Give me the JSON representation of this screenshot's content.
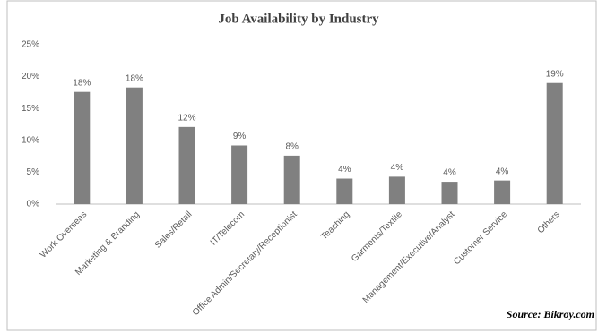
{
  "chart_data": {
    "type": "bar",
    "title": "Job Availability by Industry",
    "categories": [
      "Work Overseas",
      "Marketing & Branding",
      "Sales/Retail",
      "IT/Telecom",
      "Office Admin/Secretary/Receptionist",
      "Teaching",
      "Garments/Textile",
      "Management/Executive/Analyst",
      "Customer Service",
      "Others"
    ],
    "values": [
      17.6,
      18.3,
      12.1,
      9.2,
      7.6,
      4.0,
      4.3,
      3.5,
      3.7,
      19.0
    ],
    "value_labels": [
      "18%",
      "18%",
      "12%",
      "9%",
      "8%",
      "4%",
      "4%",
      "4%",
      "4%",
      "19%"
    ],
    "color": "#808080",
    "ylim": [
      0,
      25
    ],
    "yticks": [
      {
        "value": 0,
        "label": "0%"
      },
      {
        "value": 5,
        "label": "5%"
      },
      {
        "value": 10,
        "label": "10%"
      },
      {
        "value": 15,
        "label": "15%"
      },
      {
        "value": 20,
        "label": "20%"
      },
      {
        "value": 25,
        "label": "25%"
      }
    ],
    "grid": false,
    "source": "Source: Bikroy.com"
  }
}
